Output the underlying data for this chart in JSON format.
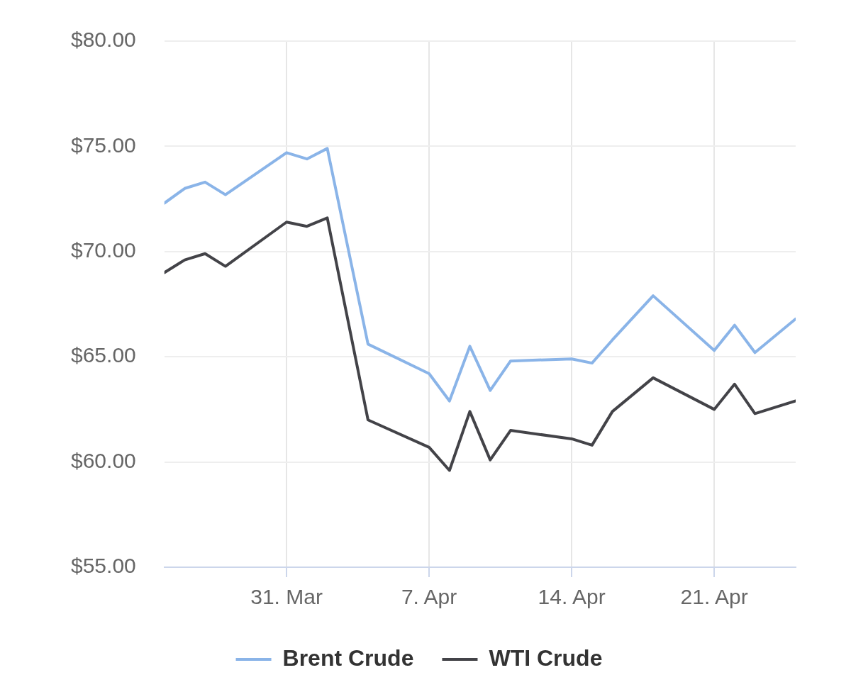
{
  "chart_data": {
    "type": "line",
    "x": [
      "--03-25",
      "--03-26",
      "--03-27",
      "--03-28",
      "--03-31",
      "--04-01",
      "--04-02",
      "--04-04",
      "--04-07",
      "--04-08",
      "--04-09",
      "--04-10",
      "--04-11",
      "--04-14",
      "--04-15",
      "--04-16",
      "--04-18",
      "--04-21",
      "--04-22",
      "--04-23",
      "--04-25"
    ],
    "series": [
      {
        "name": "Brent Crude",
        "color": "#8ab4e8",
        "values": [
          72.3,
          73.0,
          73.3,
          72.7,
          74.7,
          74.4,
          74.9,
          65.6,
          64.2,
          62.9,
          65.5,
          63.4,
          64.8,
          64.9,
          64.7,
          65.8,
          67.9,
          65.3,
          66.5,
          65.2,
          66.8
        ]
      },
      {
        "name": "WTI Crude",
        "color": "#434348",
        "values": [
          69.0,
          69.6,
          69.9,
          69.3,
          71.4,
          71.2,
          71.6,
          62.0,
          60.7,
          59.6,
          62.4,
          60.1,
          61.5,
          61.1,
          60.8,
          62.4,
          64.0,
          62.5,
          63.7,
          62.3,
          62.9
        ]
      }
    ],
    "xlim": [
      "--03-25",
      "--04-25"
    ],
    "xticks": [
      {
        "value": "--03-31",
        "label": "31. Mar"
      },
      {
        "value": "--04-07",
        "label": "7. Apr"
      },
      {
        "value": "--04-14",
        "label": "14. Apr"
      },
      {
        "value": "--04-21",
        "label": "21. Apr"
      }
    ],
    "ylim": [
      55,
      80
    ],
    "yticks": [
      {
        "value": 55,
        "label": "$55.00"
      },
      {
        "value": 60,
        "label": "$60.00"
      },
      {
        "value": 65,
        "label": "$65.00"
      },
      {
        "value": 70,
        "label": "$70.00"
      },
      {
        "value": 75,
        "label": "$75.00"
      },
      {
        "value": 80,
        "label": "$80.00"
      }
    ],
    "grid": true,
    "legend": "bottom",
    "marker": "none",
    "line_style": "solid"
  }
}
